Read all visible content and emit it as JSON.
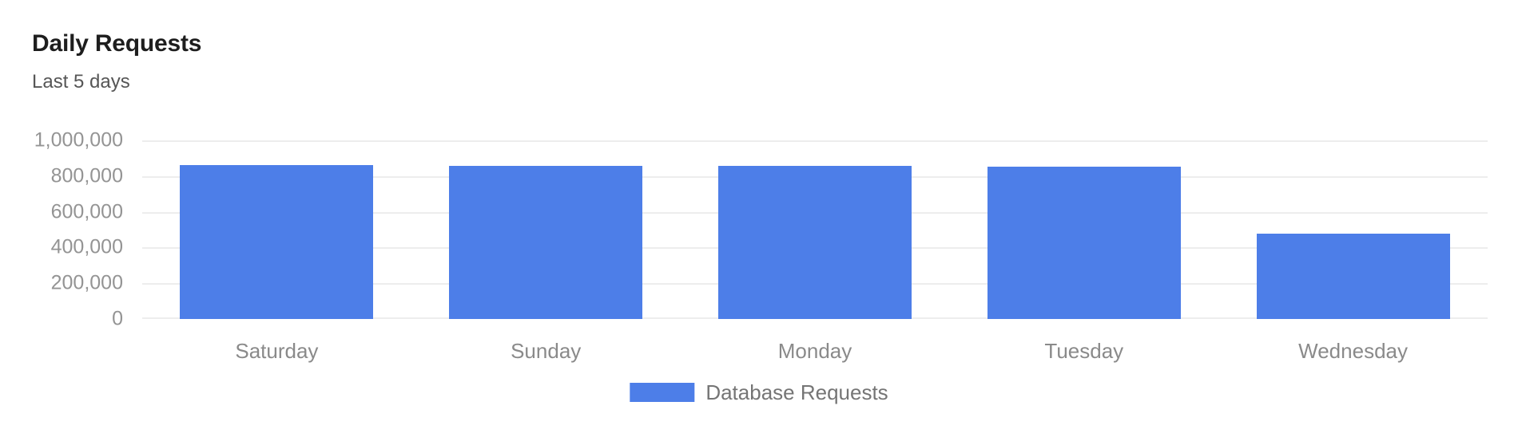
{
  "header": {
    "title": "Daily Requests",
    "subtitle": "Last 5 days"
  },
  "chart_data": {
    "type": "bar",
    "title": "Daily Requests",
    "subtitle": "Last 5 days",
    "categories": [
      "Saturday",
      "Sunday",
      "Monday",
      "Tuesday",
      "Wednesday"
    ],
    "series": [
      {
        "name": "Database Requests",
        "values": [
          861000,
          858000,
          856000,
          854000,
          476000
        ]
      }
    ],
    "xlabel": "",
    "ylabel": "",
    "ylim": [
      0,
      1000000
    ],
    "y_ticks": [
      {
        "value": 1000000,
        "label": "1,000,000"
      },
      {
        "value": 800000,
        "label": "800,000"
      },
      {
        "value": 600000,
        "label": "600,000"
      },
      {
        "value": 400000,
        "label": "400,000"
      },
      {
        "value": 200000,
        "label": "200,000"
      },
      {
        "value": 0,
        "label": "0"
      }
    ],
    "grid": true,
    "legend_position": "bottom",
    "colors": {
      "bar": "#4d7ee8",
      "gridline": "#ededed",
      "axis_label": "#949494",
      "category_label": "#8a8a8a",
      "legend_text": "#757575",
      "title": "#1e1e1e",
      "subtitle": "#565656",
      "background": "#ffffff"
    }
  }
}
